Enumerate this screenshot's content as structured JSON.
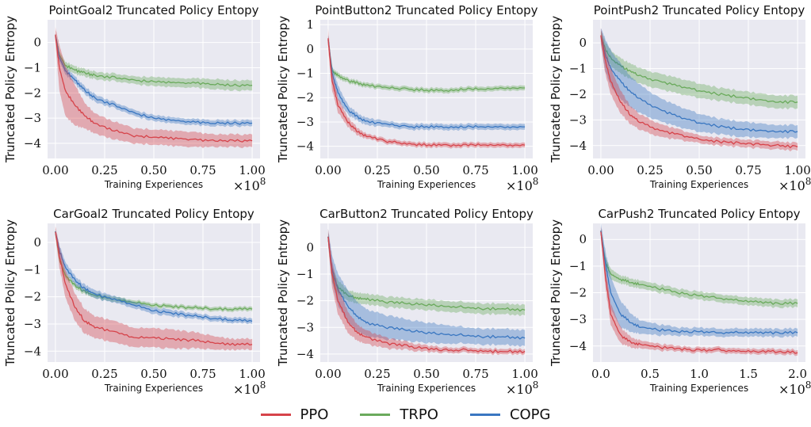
{
  "colors": {
    "PPO": "#d6434a",
    "TRPO": "#6aaa5c",
    "COPG": "#3a77c1",
    "background": "#e9e9f1",
    "grid": "#ffffff"
  },
  "legend": {
    "items": [
      {
        "label": "PPO",
        "color": "#d6434a"
      },
      {
        "label": "TRPO",
        "color": "#6aaa5c"
      },
      {
        "label": "COPG",
        "color": "#3a77c1"
      }
    ]
  },
  "chart_data": [
    {
      "type": "line",
      "title": "PointGoal2 Truncated Policy Entopy",
      "xlabel": "Training Experiences",
      "ylabel": "Truncated Policy Entropy",
      "x_multiplier_label": "×10^8",
      "xlim": [
        -0.04,
        1.04
      ],
      "ylim": [
        -4.6,
        0.9
      ],
      "xticks": [
        0.0,
        0.25,
        0.5,
        0.75,
        1.0
      ],
      "xtick_labels": [
        "0.00",
        "0.25",
        "0.50",
        "0.75",
        "1.00"
      ],
      "yticks": [
        0,
        -1,
        -2,
        -3,
        -4
      ],
      "ytick_labels": [
        "0",
        "−1",
        "−2",
        "−3",
        "−4"
      ],
      "x": [
        0,
        0.02,
        0.05,
        0.1,
        0.15,
        0.2,
        0.3,
        0.4,
        0.5,
        0.6,
        0.7,
        0.8,
        0.9,
        1.0
      ],
      "series": [
        {
          "name": "PPO",
          "values": [
            0.3,
            -1.0,
            -1.9,
            -2.5,
            -2.9,
            -3.2,
            -3.5,
            -3.7,
            -3.75,
            -3.8,
            -3.85,
            -3.9,
            -3.9,
            -3.9
          ],
          "band": [
            0.3,
            0.9,
            1.0,
            0.8,
            0.5,
            0.4,
            0.35,
            0.3,
            0.3,
            0.3,
            0.3,
            0.25,
            0.25,
            0.25
          ]
        },
        {
          "name": "TRPO",
          "values": [
            0.3,
            -0.5,
            -0.9,
            -1.1,
            -1.2,
            -1.3,
            -1.4,
            -1.5,
            -1.55,
            -1.6,
            -1.6,
            -1.65,
            -1.7,
            -1.7
          ],
          "band": [
            0.1,
            0.15,
            0.15,
            0.15,
            0.15,
            0.15,
            0.15,
            0.15,
            0.18,
            0.18,
            0.18,
            0.2,
            0.2,
            0.2
          ]
        },
        {
          "name": "COPG",
          "values": [
            0.3,
            -0.6,
            -1.1,
            -1.5,
            -1.9,
            -2.2,
            -2.5,
            -2.8,
            -3.0,
            -3.1,
            -3.15,
            -3.2,
            -3.2,
            -3.2
          ],
          "band": [
            0.1,
            0.15,
            0.15,
            0.15,
            0.15,
            0.15,
            0.12,
            0.12,
            0.12,
            0.12,
            0.12,
            0.12,
            0.12,
            0.12
          ]
        }
      ]
    },
    {
      "type": "line",
      "title": "PointButton2 Truncated Policy Entopy",
      "xlabel": "Training Experiences",
      "ylabel": "Truncated Policy Entropy",
      "x_multiplier_label": "×10^8",
      "xlim": [
        -0.04,
        1.04
      ],
      "ylim": [
        -4.5,
        1.2
      ],
      "xticks": [
        0.0,
        0.25,
        0.5,
        0.75,
        1.0
      ],
      "xtick_labels": [
        "0.00",
        "0.25",
        "0.50",
        "0.75",
        "1.00"
      ],
      "yticks": [
        1,
        0,
        -1,
        -2,
        -3,
        -4
      ],
      "ytick_labels": [
        "1",
        "0",
        "−1",
        "−2",
        "−3",
        "−4"
      ],
      "x": [
        0,
        0.02,
        0.05,
        0.1,
        0.15,
        0.2,
        0.3,
        0.4,
        0.5,
        0.6,
        0.7,
        0.8,
        0.9,
        1.0
      ],
      "series": [
        {
          "name": "PPO",
          "values": [
            0.4,
            -1.3,
            -2.3,
            -3.0,
            -3.4,
            -3.6,
            -3.8,
            -3.9,
            -3.95,
            -3.95,
            -3.95,
            -3.95,
            -3.95,
            -3.95
          ],
          "band": [
            0.4,
            0.4,
            0.3,
            0.2,
            0.15,
            0.1,
            0.1,
            0.1,
            0.1,
            0.1,
            0.1,
            0.1,
            0.1,
            0.1
          ]
        },
        {
          "name": "TRPO",
          "values": [
            0.4,
            -0.9,
            -1.1,
            -1.3,
            -1.4,
            -1.5,
            -1.6,
            -1.65,
            -1.7,
            -1.7,
            -1.65,
            -1.65,
            -1.6,
            -1.6
          ],
          "band": [
            0.1,
            0.12,
            0.12,
            0.1,
            0.1,
            0.1,
            0.1,
            0.1,
            0.1,
            0.1,
            0.1,
            0.1,
            0.1,
            0.1
          ]
        },
        {
          "name": "COPG",
          "values": [
            0.4,
            -1.0,
            -1.8,
            -2.5,
            -2.8,
            -3.0,
            -3.1,
            -3.2,
            -3.2,
            -3.2,
            -3.2,
            -3.2,
            -3.2,
            -3.2
          ],
          "band": [
            0.2,
            0.3,
            0.3,
            0.2,
            0.15,
            0.15,
            0.12,
            0.12,
            0.12,
            0.12,
            0.12,
            0.12,
            0.12,
            0.12
          ]
        }
      ]
    },
    {
      "type": "line",
      "title": "PointPush2 Truncated Policy Entopy",
      "xlabel": "Training Experiences",
      "ylabel": "Truncated Policy Entropy",
      "x_multiplier_label": "×10^8",
      "xlim": [
        -0.04,
        1.04
      ],
      "ylim": [
        -4.5,
        0.9
      ],
      "xticks": [
        0.0,
        0.25,
        0.5,
        0.75,
        1.0
      ],
      "xtick_labels": [
        "0.00",
        "0.25",
        "0.50",
        "0.75",
        "1.00"
      ],
      "yticks": [
        0,
        -1,
        -2,
        -3,
        -4
      ],
      "ytick_labels": [
        "0",
        "−1",
        "−2",
        "−3",
        "−4"
      ],
      "x": [
        0,
        0.02,
        0.05,
        0.1,
        0.15,
        0.2,
        0.3,
        0.4,
        0.5,
        0.6,
        0.7,
        0.8,
        0.9,
        1.0
      ],
      "series": [
        {
          "name": "PPO",
          "values": [
            0.3,
            -0.6,
            -1.5,
            -2.3,
            -2.8,
            -3.1,
            -3.4,
            -3.6,
            -3.75,
            -3.85,
            -3.9,
            -3.95,
            -4.0,
            -4.05
          ],
          "band": [
            0.3,
            0.5,
            0.5,
            0.45,
            0.35,
            0.3,
            0.25,
            0.2,
            0.15,
            0.15,
            0.15,
            0.15,
            0.15,
            0.15
          ]
        },
        {
          "name": "TRPO",
          "values": [
            0.3,
            -0.2,
            -0.6,
            -0.9,
            -1.1,
            -1.3,
            -1.5,
            -1.7,
            -1.85,
            -2.0,
            -2.1,
            -2.2,
            -2.3,
            -2.3
          ],
          "band": [
            0.2,
            0.3,
            0.3,
            0.3,
            0.3,
            0.3,
            0.3,
            0.3,
            0.28,
            0.25,
            0.25,
            0.25,
            0.25,
            0.25
          ]
        },
        {
          "name": "COPG",
          "values": [
            0.3,
            -0.4,
            -1.0,
            -1.5,
            -1.9,
            -2.2,
            -2.6,
            -2.9,
            -3.1,
            -3.25,
            -3.35,
            -3.4,
            -3.45,
            -3.45
          ],
          "band": [
            0.3,
            0.6,
            0.7,
            0.7,
            0.6,
            0.55,
            0.45,
            0.4,
            0.35,
            0.3,
            0.3,
            0.28,
            0.25,
            0.25
          ]
        }
      ]
    },
    {
      "type": "line",
      "title": "CarGoal2 Truncated Policy Entopy",
      "xlabel": "Training Experiences",
      "ylabel": "Truncated Policy Entropy",
      "x_multiplier_label": "×10^8",
      "xlim": [
        -0.04,
        1.04
      ],
      "ylim": [
        -4.4,
        0.7
      ],
      "xticks": [
        0.0,
        0.25,
        0.5,
        0.75,
        1.0
      ],
      "xtick_labels": [
        "0.00",
        "0.25",
        "0.50",
        "0.75",
        "1.00"
      ],
      "yticks": [
        0,
        -1,
        -2,
        -3,
        -4
      ],
      "ytick_labels": [
        "0",
        "−1",
        "−2",
        "−3",
        "−4"
      ],
      "x": [
        0,
        0.02,
        0.05,
        0.1,
        0.15,
        0.2,
        0.3,
        0.4,
        0.5,
        0.6,
        0.7,
        0.8,
        0.9,
        1.0
      ],
      "series": [
        {
          "name": "PPO",
          "values": [
            0.4,
            -0.5,
            -1.5,
            -2.4,
            -2.9,
            -3.1,
            -3.3,
            -3.5,
            -3.5,
            -3.55,
            -3.6,
            -3.7,
            -3.75,
            -3.75
          ],
          "band": [
            0.2,
            0.4,
            0.5,
            0.5,
            0.45,
            0.4,
            0.4,
            0.35,
            0.35,
            0.35,
            0.3,
            0.25,
            0.2,
            0.2
          ]
        },
        {
          "name": "TRPO",
          "values": [
            0.4,
            -0.6,
            -1.2,
            -1.6,
            -1.8,
            -1.95,
            -2.1,
            -2.2,
            -2.3,
            -2.35,
            -2.4,
            -2.45,
            -2.45,
            -2.45
          ],
          "band": [
            0.08,
            0.1,
            0.1,
            0.1,
            0.1,
            0.1,
            0.1,
            0.08,
            0.08,
            0.08,
            0.08,
            0.08,
            0.08,
            0.08
          ]
        },
        {
          "name": "COPG",
          "values": [
            0.4,
            -0.3,
            -0.9,
            -1.4,
            -1.7,
            -1.9,
            -2.1,
            -2.3,
            -2.5,
            -2.6,
            -2.7,
            -2.8,
            -2.85,
            -2.9
          ],
          "band": [
            0.1,
            0.2,
            0.2,
            0.15,
            0.15,
            0.15,
            0.12,
            0.12,
            0.12,
            0.12,
            0.1,
            0.1,
            0.1,
            0.1
          ]
        }
      ]
    },
    {
      "type": "line",
      "title": "CarButton2 Truncated Policy Entopy",
      "xlabel": "Training Experiences",
      "ylabel": "Truncated Policy Entropy",
      "x_multiplier_label": "×10^8",
      "xlim": [
        -0.04,
        1.04
      ],
      "ylim": [
        -4.3,
        0.9
      ],
      "xticks": [
        0.0,
        0.25,
        0.5,
        0.75,
        1.0
      ],
      "xtick_labels": [
        "0.00",
        "0.25",
        "0.50",
        "0.75",
        "1.00"
      ],
      "yticks": [
        0,
        -1,
        -2,
        -3,
        -4
      ],
      "ytick_labels": [
        "0",
        "−1",
        "−2",
        "−3",
        "−4"
      ],
      "x": [
        0,
        0.02,
        0.05,
        0.1,
        0.15,
        0.2,
        0.3,
        0.4,
        0.5,
        0.6,
        0.7,
        0.8,
        0.9,
        1.0
      ],
      "series": [
        {
          "name": "PPO",
          "values": [
            0.4,
            -1.0,
            -2.0,
            -2.8,
            -3.2,
            -3.4,
            -3.6,
            -3.7,
            -3.8,
            -3.85,
            -3.85,
            -3.9,
            -3.9,
            -3.9
          ],
          "band": [
            0.3,
            0.5,
            0.5,
            0.4,
            0.3,
            0.25,
            0.2,
            0.15,
            0.12,
            0.1,
            0.1,
            0.1,
            0.1,
            0.1
          ]
        },
        {
          "name": "TRPO",
          "values": [
            0.4,
            -1.0,
            -1.5,
            -1.8,
            -1.9,
            -1.95,
            -2.05,
            -2.1,
            -2.15,
            -2.2,
            -2.25,
            -2.3,
            -2.3,
            -2.35
          ],
          "band": [
            0.2,
            0.3,
            0.25,
            0.2,
            0.2,
            0.2,
            0.2,
            0.2,
            0.2,
            0.2,
            0.2,
            0.2,
            0.2,
            0.2
          ]
        },
        {
          "name": "COPG",
          "values": [
            0.4,
            -0.8,
            -1.6,
            -2.2,
            -2.6,
            -2.85,
            -3.0,
            -3.1,
            -3.2,
            -3.25,
            -3.3,
            -3.35,
            -3.35,
            -3.4
          ],
          "band": [
            0.3,
            0.5,
            0.6,
            0.6,
            0.55,
            0.5,
            0.45,
            0.4,
            0.38,
            0.35,
            0.3,
            0.3,
            0.3,
            0.3
          ]
        }
      ]
    },
    {
      "type": "line",
      "title": "CarPush2 Truncated Policy Entopy",
      "xlabel": "Training Experiences",
      "ylabel": "Truncated Policy Entropy",
      "x_multiplier_label": "×10^8",
      "xlim": [
        -0.08,
        2.08
      ],
      "ylim": [
        -4.6,
        0.6
      ],
      "xticks": [
        0.0,
        0.5,
        1.0,
        1.5,
        2.0
      ],
      "xtick_labels": [
        "0.0",
        "0.5",
        "1.0",
        "1.5",
        "2.0"
      ],
      "yticks": [
        0,
        -1,
        -2,
        -3,
        -4
      ],
      "ytick_labels": [
        "0",
        "−1",
        "−2",
        "−3",
        "−4"
      ],
      "x": [
        0,
        0.05,
        0.1,
        0.2,
        0.3,
        0.4,
        0.6,
        0.8,
        1.0,
        1.2,
        1.4,
        1.6,
        1.8,
        2.0
      ],
      "series": [
        {
          "name": "PPO",
          "values": [
            0.3,
            -1.5,
            -2.8,
            -3.6,
            -3.85,
            -3.95,
            -4.05,
            -4.1,
            -4.15,
            -4.15,
            -4.2,
            -4.2,
            -4.2,
            -4.25
          ],
          "band": [
            0.2,
            0.4,
            0.4,
            0.3,
            0.2,
            0.15,
            0.12,
            0.1,
            0.1,
            0.1,
            0.1,
            0.1,
            0.1,
            0.1
          ]
        },
        {
          "name": "TRPO",
          "values": [
            0.3,
            -0.9,
            -1.3,
            -1.5,
            -1.6,
            -1.7,
            -1.85,
            -2.0,
            -2.1,
            -2.2,
            -2.3,
            -2.35,
            -2.4,
            -2.4
          ],
          "band": [
            0.1,
            0.2,
            0.2,
            0.15,
            0.15,
            0.15,
            0.15,
            0.15,
            0.15,
            0.15,
            0.15,
            0.15,
            0.15,
            0.15
          ]
        },
        {
          "name": "COPG",
          "values": [
            0.3,
            -1.0,
            -2.0,
            -2.8,
            -3.1,
            -3.3,
            -3.4,
            -3.45,
            -3.45,
            -3.5,
            -3.5,
            -3.5,
            -3.5,
            -3.5
          ],
          "band": [
            0.3,
            0.5,
            0.6,
            0.5,
            0.35,
            0.25,
            0.2,
            0.15,
            0.15,
            0.15,
            0.15,
            0.15,
            0.15,
            0.15
          ]
        }
      ]
    }
  ]
}
